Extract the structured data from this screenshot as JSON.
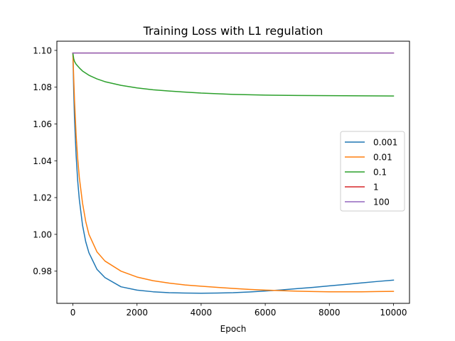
{
  "chart_data": {
    "type": "line",
    "title": "Training Loss with L1 regulation",
    "xlabel": "Epoch",
    "ylabel": "",
    "xlim": [
      -500,
      10500
    ],
    "ylim": [
      0.9625,
      1.105
    ],
    "xticks": [
      0,
      2000,
      4000,
      6000,
      8000,
      10000
    ],
    "xtick_labels": [
      "0",
      "2000",
      "4000",
      "6000",
      "8000",
      "10000"
    ],
    "yticks": [
      0.98,
      1.0,
      1.02,
      1.04,
      1.06,
      1.08,
      1.1
    ],
    "ytick_labels": [
      "0.98",
      "1.00",
      "1.02",
      "1.04",
      "1.06",
      "1.08",
      "1.10"
    ],
    "grid": false,
    "legend_position": "center-right",
    "series": [
      {
        "name": "0.001",
        "color": "#1f77b4",
        "x": [
          0,
          25,
          50,
          100,
          150,
          200,
          300,
          400,
          500,
          750,
          1000,
          1500,
          2000,
          2500,
          3000,
          3500,
          4000,
          4500,
          5000,
          5500,
          6000,
          6500,
          7000,
          7500,
          8000,
          8500,
          9000,
          9500,
          10000
        ],
        "y": [
          1.0985,
          1.078,
          1.063,
          1.043,
          1.029,
          1.019,
          1.005,
          0.996,
          0.99,
          0.981,
          0.9765,
          0.9715,
          0.9697,
          0.9688,
          0.9683,
          0.9681,
          0.968,
          0.9681,
          0.9683,
          0.9687,
          0.9692,
          0.9698,
          0.9705,
          0.9712,
          0.972,
          0.9728,
          0.9736,
          0.9744,
          0.9751
        ]
      },
      {
        "name": "0.01",
        "color": "#ff7f0e",
        "x": [
          0,
          25,
          50,
          100,
          150,
          200,
          300,
          400,
          500,
          750,
          1000,
          1500,
          2000,
          2500,
          3000,
          3500,
          4000,
          4500,
          5000,
          5500,
          6000,
          6500,
          7000,
          7500,
          8000,
          8500,
          9000,
          9500,
          10000
        ],
        "y": [
          1.0985,
          1.085,
          1.073,
          1.054,
          1.041,
          1.031,
          1.017,
          1.007,
          1.0,
          0.9905,
          0.9855,
          0.98,
          0.9768,
          0.9748,
          0.9735,
          0.9725,
          0.9718,
          0.9712,
          0.9706,
          0.9701,
          0.9697,
          0.9694,
          0.9691,
          0.9689,
          0.9688,
          0.9688,
          0.9688,
          0.9689,
          0.969
        ]
      },
      {
        "name": "0.1",
        "color": "#2ca02c",
        "x": [
          0,
          25,
          50,
          100,
          200,
          300,
          500,
          750,
          1000,
          1500,
          2000,
          2500,
          3000,
          4000,
          5000,
          6000,
          7000,
          8000,
          9000,
          10000
        ],
        "y": [
          1.0985,
          1.0955,
          1.094,
          1.0925,
          1.0905,
          1.0888,
          1.0865,
          1.0845,
          1.083,
          1.081,
          1.0796,
          1.0786,
          1.0779,
          1.0768,
          1.0761,
          1.0757,
          1.0755,
          1.0754,
          1.0753,
          1.0752
        ]
      },
      {
        "name": "1",
        "color": "#d62728",
        "x": [
          0,
          10000
        ],
        "y": [
          1.0986,
          1.0986
        ]
      },
      {
        "name": "100",
        "color": "#9467bd",
        "x": [
          0,
          10000
        ],
        "y": [
          1.0986,
          1.0986
        ]
      }
    ]
  }
}
